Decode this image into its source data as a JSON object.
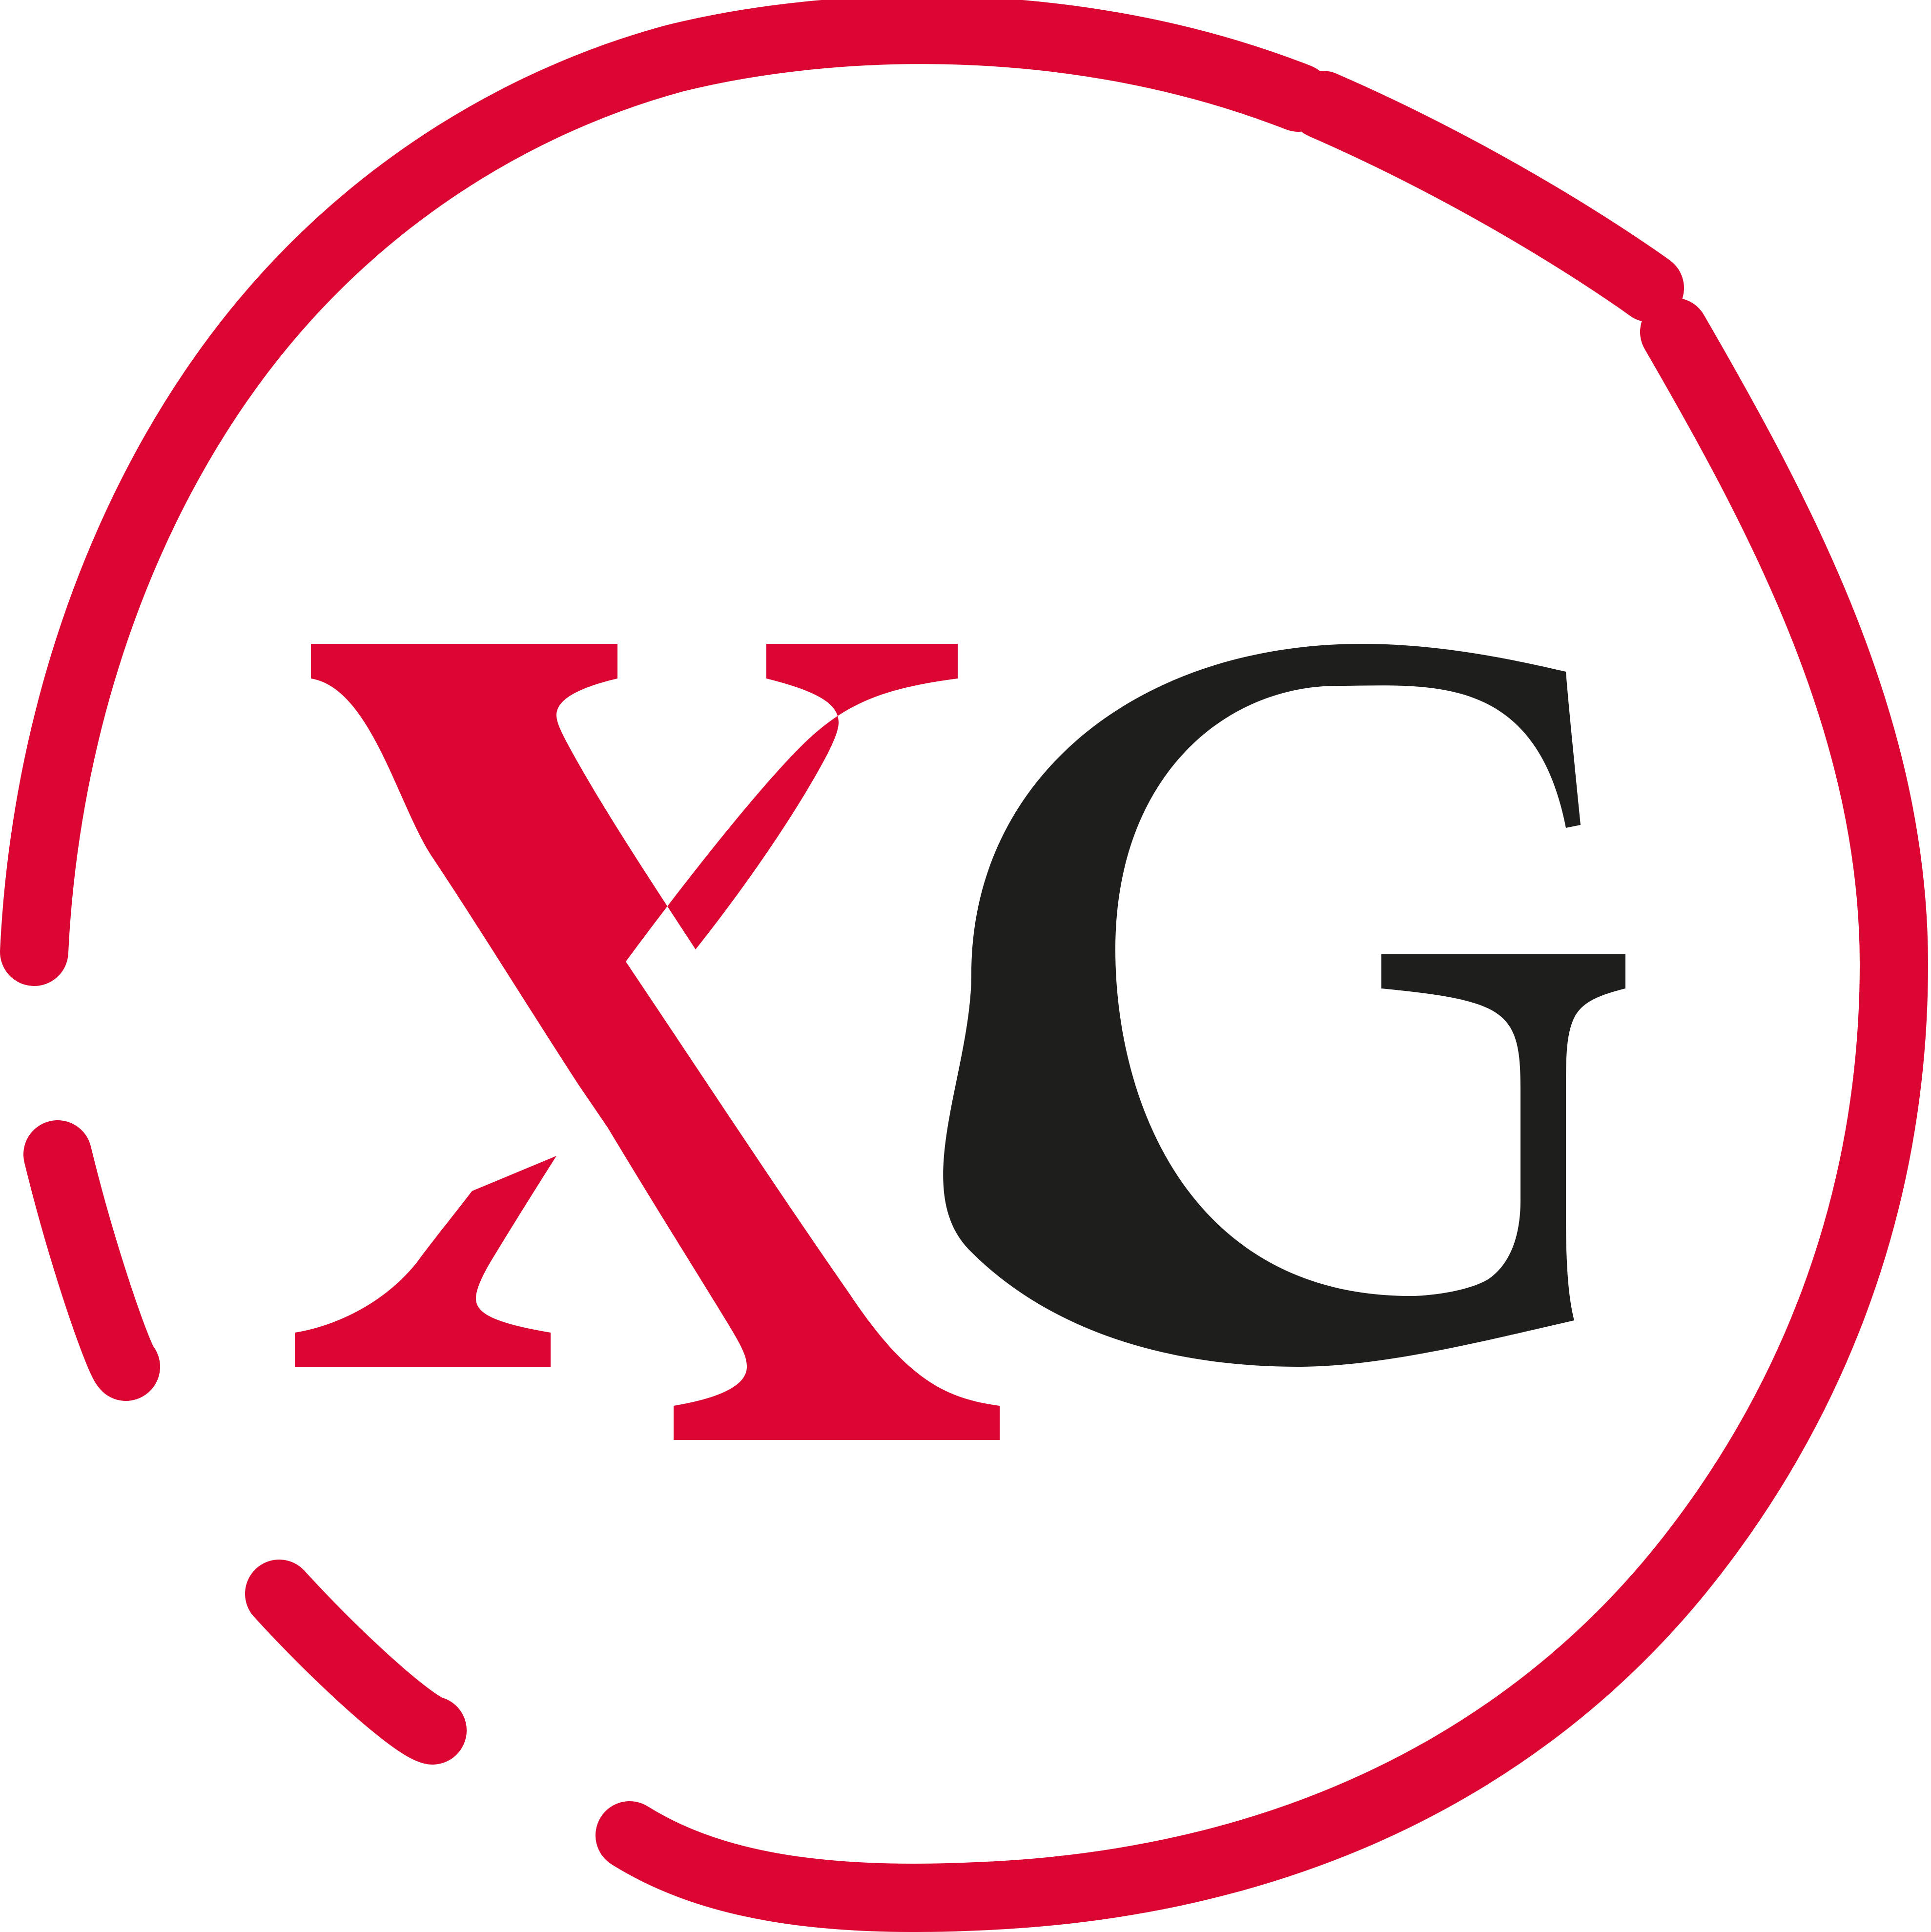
{
  "logo": {
    "name": "XG",
    "colors": {
      "red": "#DC0632",
      "black": "#1E1E1C",
      "background": "#FFFFFF"
    }
  }
}
